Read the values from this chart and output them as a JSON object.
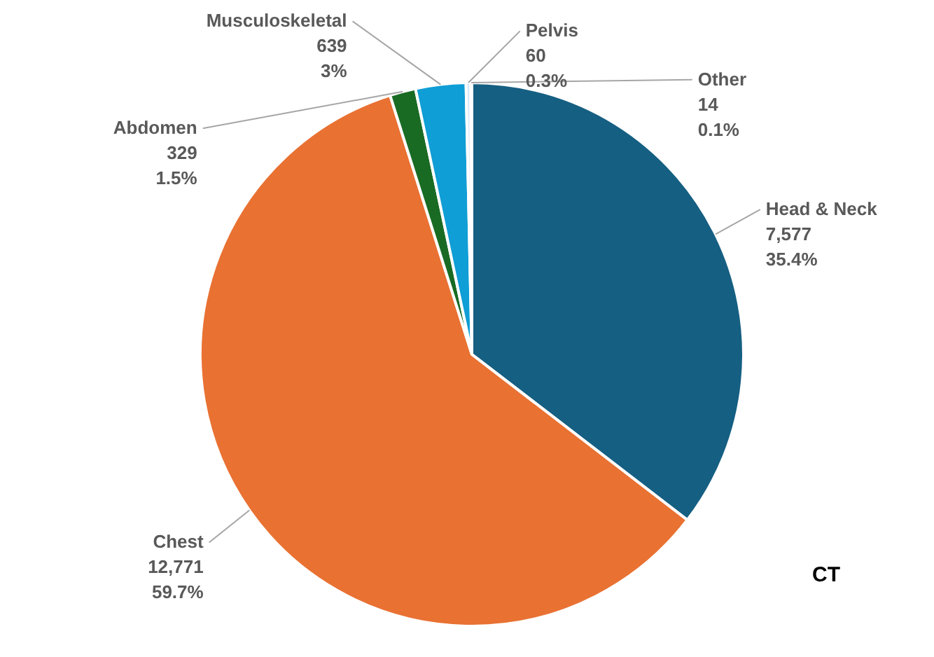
{
  "chart_data": {
    "type": "pie",
    "categories": [
      "Head & Neck",
      "Chest",
      "Abdomen",
      "Musculoskeletal",
      "Pelvis",
      "Other"
    ],
    "values": [
      7577,
      12771,
      329,
      639,
      60,
      14
    ],
    "value_labels": [
      "7,577\n35.4%",
      "12,771\n59.7%",
      "329\n1.5%",
      "639\n3%",
      "60\n0.3%",
      "14\n0.1%"
    ],
    "colors": [
      "#155f82",
      "#e97132",
      "#196b24",
      "#0f9ed5",
      "#d9e8f5",
      "#c5d3e0"
    ],
    "annotations": [
      "CT"
    ]
  }
}
